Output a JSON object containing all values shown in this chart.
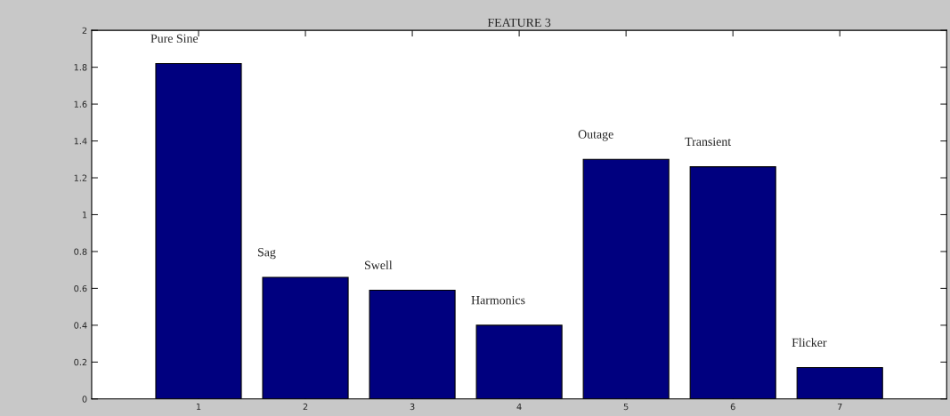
{
  "chart_data": {
    "type": "bar",
    "title": "FEATURE 3",
    "categories": [
      "1",
      "2",
      "3",
      "4",
      "5",
      "6",
      "7"
    ],
    "values": [
      1.82,
      0.66,
      0.59,
      0.4,
      1.3,
      1.26,
      0.17
    ],
    "color": "#00007f",
    "ylim": [
      0,
      2
    ],
    "yticks": [
      0,
      0.2,
      0.4,
      0.6,
      0.8,
      1,
      1.2,
      1.4,
      1.6,
      1.8,
      2
    ],
    "grid": false,
    "annotations": [
      "Pure Sine",
      "Sag",
      "Swell",
      "Harmonics",
      "Outage",
      "Transient",
      "Flicker"
    ]
  }
}
